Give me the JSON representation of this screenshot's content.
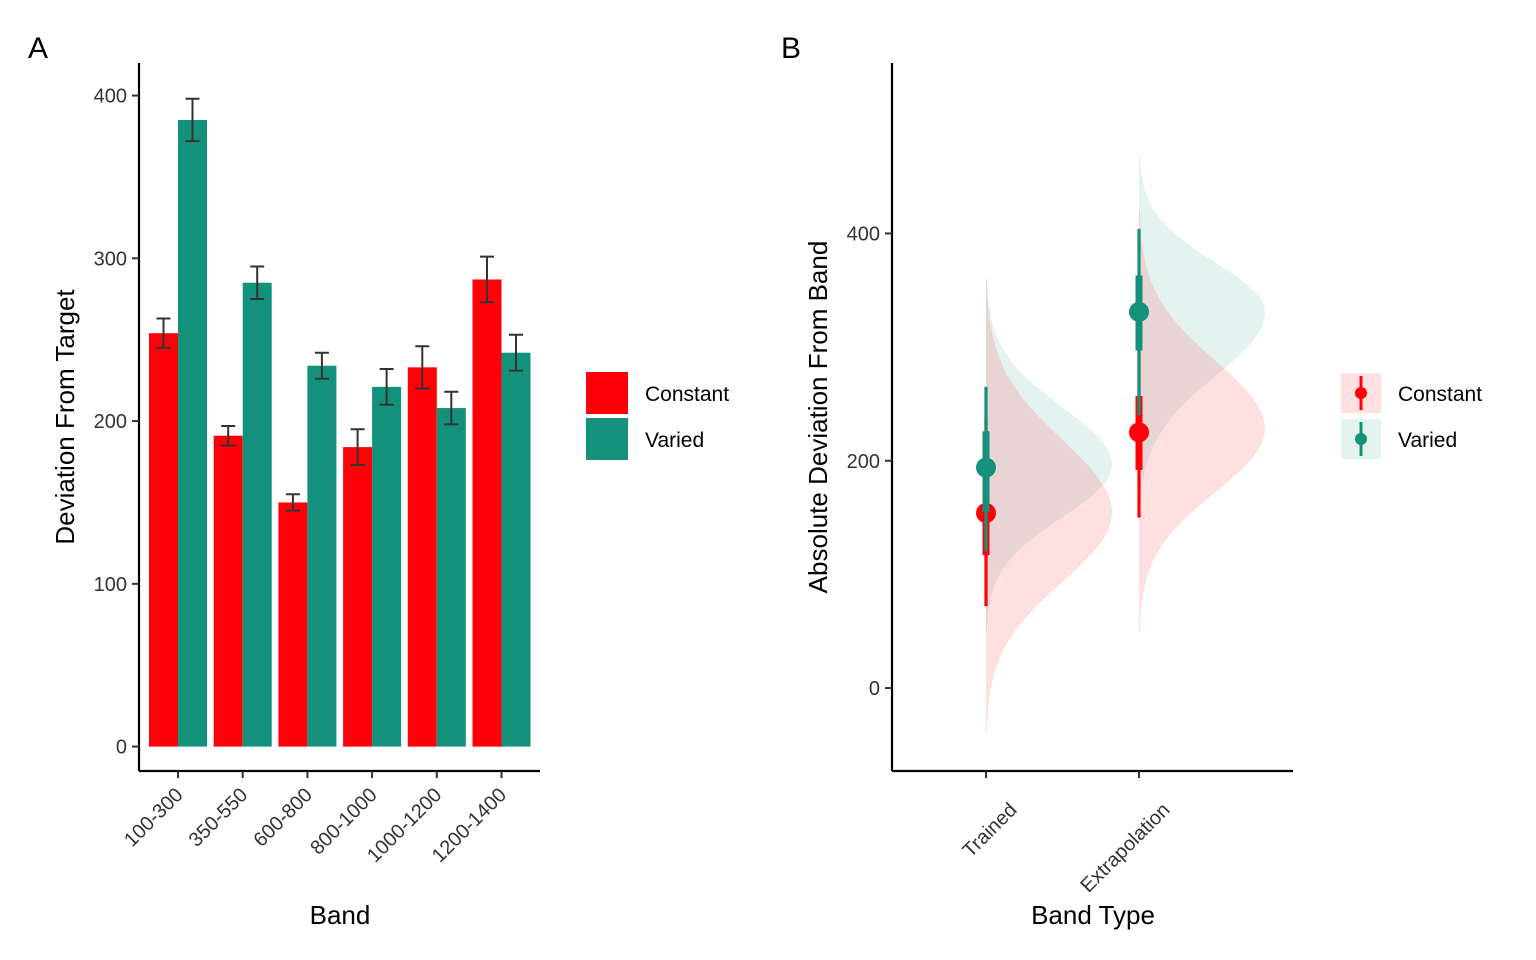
{
  "colors": {
    "constant": "#FF0008",
    "varied": "#14917A"
  },
  "chart_data": [
    {
      "panel": "A",
      "type": "bar",
      "xlabel": "Band",
      "ylabel": "Deviation From Target",
      "ylim": [
        -15,
        420
      ],
      "yticks": [
        "0",
        "100",
        "200",
        "300",
        "400"
      ],
      "categories": [
        "100-300",
        "350-550",
        "600-800",
        "800-1000",
        "1000-1200",
        "1200-1400"
      ],
      "series": [
        {
          "name": "Constant",
          "values": [
            254,
            191,
            150,
            184,
            233,
            287
          ],
          "err": [
            9,
            6,
            5,
            11,
            13,
            14
          ]
        },
        {
          "name": "Varied",
          "values": [
            385,
            285,
            234,
            221,
            208,
            242
          ],
          "err": [
            13,
            10,
            8,
            11,
            10,
            11
          ]
        }
      ],
      "legend": [
        "Constant",
        "Varied"
      ],
      "legend_position": "right",
      "grid": false
    },
    {
      "panel": "B",
      "type": "scatter",
      "xlabel": "Band Type",
      "ylabel": "Absolute Deviation From Band",
      "ylim": [
        -73,
        550
      ],
      "yticks": [
        "0",
        "200",
        "400"
      ],
      "categories": [
        "Trained",
        "Extrapolation"
      ],
      "series": [
        {
          "name": "Constant",
          "points": [
            {
              "category": "Trained",
              "median": 154,
              "inner": [
                117,
                193
              ],
              "outer": [
                72,
                237
              ],
              "density_mode": 154,
              "density_range": [
                -40,
                360
              ]
            },
            {
              "category": "Extrapolation",
              "median": 225,
              "inner": [
                192,
                257
              ],
              "outer": [
                150,
                296
              ],
              "density_mode": 228,
              "density_range": [
                50,
                420
              ]
            }
          ]
        },
        {
          "name": "Varied",
          "points": [
            {
              "category": "Trained",
              "median": 194,
              "inner": [
                155,
                226
              ],
              "outer": [
                120,
                265
              ],
              "density_mode": 196,
              "density_range": [
                50,
                360
              ]
            },
            {
              "category": "Extrapolation",
              "median": 331,
              "inner": [
                297,
                363
              ],
              "outer": [
                240,
                404
              ],
              "density_mode": 331,
              "density_range": [
                150,
                470
              ]
            }
          ]
        }
      ],
      "legend": [
        "Constant",
        "Varied"
      ],
      "legend_position": "right",
      "grid": false
    }
  ]
}
